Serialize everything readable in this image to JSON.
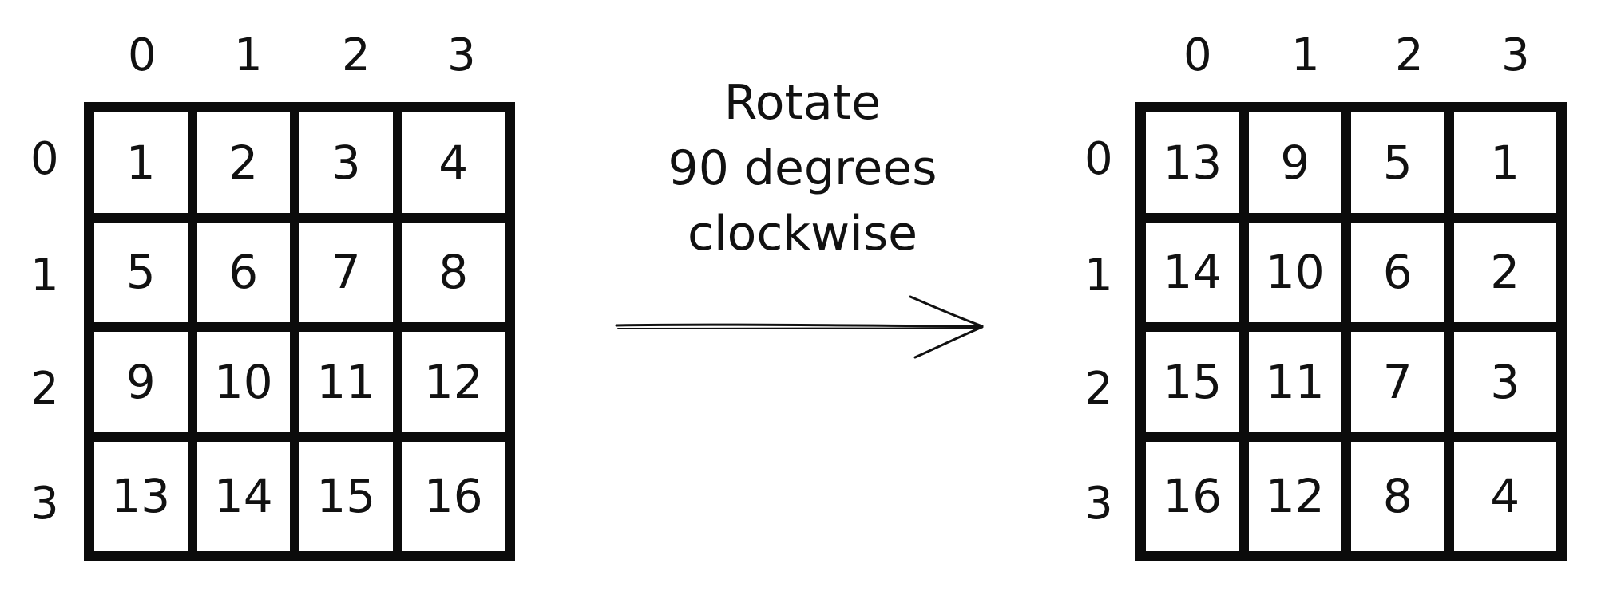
{
  "caption": {
    "line1": "Rotate",
    "line2": "90 degrees",
    "line3": "clockwise"
  },
  "left_matrix": {
    "col_labels": [
      "0",
      "1",
      "2",
      "3"
    ],
    "row_labels": [
      "0",
      "1",
      "2",
      "3"
    ],
    "cells": [
      [
        "1",
        "2",
        "3",
        "4"
      ],
      [
        "5",
        "6",
        "7",
        "8"
      ],
      [
        "9",
        "10",
        "11",
        "12"
      ],
      [
        "13",
        "14",
        "15",
        "16"
      ]
    ]
  },
  "right_matrix": {
    "col_labels": [
      "0",
      "1",
      "2",
      "3"
    ],
    "row_labels": [
      "0",
      "1",
      "2",
      "3"
    ],
    "cells": [
      [
        "13",
        "9",
        "5",
        "1"
      ],
      [
        "14",
        "10",
        "6",
        "2"
      ],
      [
        "15",
        "11",
        "7",
        "3"
      ],
      [
        "16",
        "12",
        "8",
        "4"
      ]
    ]
  },
  "colors": {
    "stroke": "#0b0b0b",
    "text": "#111111",
    "background": "#ffffff"
  }
}
